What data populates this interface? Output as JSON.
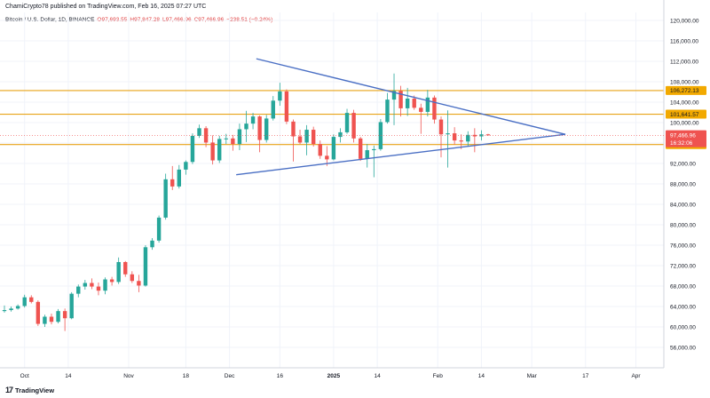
{
  "header": {
    "published": "ChamiCrypto78 published on TradingView.com, Feb 16, 2025 07:27 UTC"
  },
  "legend": {
    "symbol": "Bitcoin / U.S. Dollar, 1D, BINANCE",
    "open": "O97,693.55",
    "high": "H97,847.28",
    "low": "L97,466.96",
    "close": "C97,466.96",
    "change": "−238.51 (−0.24%)"
  },
  "footer": {
    "brand": "TradingView"
  },
  "colors": {
    "up": "#26a69a",
    "down": "#ef5350",
    "level": "#e8a317",
    "trendline": "#4a6fc4",
    "price_tag": "#ef5350",
    "level_tag": "#f2a900"
  },
  "chart_data": {
    "type": "candlestick",
    "title": "",
    "ylim": [
      52000,
      122000
    ],
    "y_ticks": [
      "120,000.00",
      "116,000.00",
      "112,000.00",
      "108,000.00",
      "104,000.00",
      "100,000.00",
      "96,000.00",
      "92,000.00",
      "88,000.00",
      "84,000.00",
      "80,000.00",
      "76,000.00",
      "72,000.00",
      "68,000.00",
      "64,000.00",
      "60,000.00",
      "56,000.00"
    ],
    "x_ticks": [
      {
        "label": "Oct",
        "bold": false
      },
      {
        "label": "14",
        "bold": false
      },
      {
        "label": "Nov",
        "bold": false
      },
      {
        "label": "18",
        "bold": false
      },
      {
        "label": "Dec",
        "bold": false
      },
      {
        "label": "16",
        "bold": false
      },
      {
        "label": "2025",
        "bold": true
      },
      {
        "label": "14",
        "bold": false
      },
      {
        "label": "Feb",
        "bold": false
      },
      {
        "label": "14",
        "bold": false
      },
      {
        "label": "Mar",
        "bold": false
      },
      {
        "label": "17",
        "bold": false
      },
      {
        "label": "Apr",
        "bold": false
      }
    ],
    "levels": [
      {
        "value": 106272.13,
        "label": "106,272.13"
      },
      {
        "value": 101641.57,
        "label": "101,641.57"
      },
      {
        "value": 95702.38,
        "label": "95,702.38"
      }
    ],
    "last_price": {
      "value": 97466.96,
      "label": "97,466.96",
      "countdown": "16:32:06"
    },
    "trendlines": [
      {
        "from": [
          "2024-12-09",
          112500
        ],
        "to": [
          "2025-03-11",
          97700
        ]
      },
      {
        "from": [
          "2024-12-03",
          89800
        ],
        "to": [
          "2025-03-11",
          97700
        ]
      }
    ],
    "candles": [
      [
        "2024-09-25",
        63100,
        64200,
        62800,
        63300
      ],
      [
        "2024-09-27",
        63300,
        64000,
        63000,
        63600
      ],
      [
        "2024-09-29",
        63600,
        64400,
        63400,
        64100
      ],
      [
        "2024-10-01",
        64100,
        66300,
        63800,
        65800
      ],
      [
        "2024-10-03",
        65800,
        66200,
        64600,
        64900
      ],
      [
        "2024-10-05",
        64900,
        65200,
        60200,
        60600
      ],
      [
        "2024-10-07",
        60600,
        62400,
        60000,
        62000
      ],
      [
        "2024-10-09",
        62000,
        62600,
        60500,
        61000
      ],
      [
        "2024-10-11",
        61000,
        63500,
        60700,
        63100
      ],
      [
        "2024-10-13",
        63100,
        63600,
        59200,
        61700
      ],
      [
        "2024-10-15",
        61700,
        66800,
        61500,
        66500
      ],
      [
        "2024-10-17",
        66500,
        68300,
        65800,
        67900
      ],
      [
        "2024-10-19",
        67900,
        69200,
        67300,
        68600
      ],
      [
        "2024-10-21",
        68600,
        69500,
        67400,
        67900
      ],
      [
        "2024-10-23",
        67900,
        68700,
        66200,
        67100
      ],
      [
        "2024-10-25",
        67100,
        69700,
        66400,
        69300
      ],
      [
        "2024-10-27",
        69300,
        69800,
        68100,
        68800
      ],
      [
        "2024-10-29",
        68800,
        73600,
        68400,
        72700
      ],
      [
        "2024-10-31",
        72700,
        72900,
        69800,
        70300
      ],
      [
        "2024-11-02",
        70300,
        70900,
        68600,
        69000
      ],
      [
        "2024-11-04",
        69000,
        70200,
        66800,
        68100
      ],
      [
        "2024-11-06",
        68100,
        76000,
        67900,
        75600
      ],
      [
        "2024-11-08",
        75600,
        77400,
        75100,
        76900
      ],
      [
        "2024-11-10",
        76900,
        81800,
        76500,
        81400
      ],
      [
        "2024-11-12",
        81400,
        90000,
        81000,
        88900
      ],
      [
        "2024-11-14",
        88900,
        91500,
        86800,
        87500
      ],
      [
        "2024-11-16",
        87500,
        91700,
        87100,
        90800
      ],
      [
        "2024-11-18",
        90800,
        92600,
        89800,
        92300
      ],
      [
        "2024-11-20",
        92300,
        97900,
        91900,
        97400
      ],
      [
        "2024-11-22",
        97400,
        99600,
        97000,
        98900
      ],
      [
        "2024-11-24",
        98900,
        99300,
        95200,
        96100
      ],
      [
        "2024-11-26",
        96100,
        97500,
        91800,
        92600
      ],
      [
        "2024-11-28",
        92600,
        97400,
        92100,
        96800
      ],
      [
        "2024-11-30",
        96800,
        97800,
        95800,
        96900
      ],
      [
        "2024-12-02",
        96900,
        97600,
        94500,
        95800
      ],
      [
        "2024-12-04",
        95800,
        99800,
        94600,
        98700
      ],
      [
        "2024-12-06",
        98700,
        102300,
        96200,
        99800
      ],
      [
        "2024-12-08",
        99800,
        101900,
        98700,
        101200
      ],
      [
        "2024-12-10",
        101200,
        101400,
        94200,
        96600
      ],
      [
        "2024-12-12",
        96600,
        101500,
        96100,
        100800
      ],
      [
        "2024-12-14",
        100800,
        105200,
        100400,
        104300
      ],
      [
        "2024-12-16",
        104300,
        107800,
        103300,
        106100
      ],
      [
        "2024-12-18",
        106100,
        106500,
        99700,
        100200
      ],
      [
        "2024-12-20",
        100200,
        100600,
        92400,
        97300
      ],
      [
        "2024-12-22",
        97300,
        98600,
        95800,
        96100
      ],
      [
        "2024-12-24",
        96100,
        99500,
        93600,
        98600
      ],
      [
        "2024-12-26",
        98600,
        99200,
        95300,
        95800
      ],
      [
        "2024-12-28",
        95800,
        96500,
        92900,
        93500
      ],
      [
        "2024-12-30",
        93500,
        95400,
        91500,
        92800
      ],
      [
        "2025-01-01",
        92800,
        97700,
        92600,
        97200
      ],
      [
        "2025-01-03",
        97200,
        98900,
        96100,
        98100
      ],
      [
        "2025-01-05",
        98100,
        102700,
        97800,
        101900
      ],
      [
        "2025-01-07",
        101900,
        102500,
        96100,
        96900
      ],
      [
        "2025-01-09",
        96900,
        97200,
        92500,
        92900
      ],
      [
        "2025-01-11",
        92900,
        95800,
        91200,
        94600
      ],
      [
        "2025-01-13",
        94600,
        95500,
        89300,
        94800
      ],
      [
        "2025-01-15",
        94800,
        100700,
        94500,
        100100
      ],
      [
        "2025-01-17",
        100100,
        105800,
        99800,
        104500
      ],
      [
        "2025-01-19",
        104500,
        109600,
        99500,
        106200
      ],
      [
        "2025-01-21",
        106200,
        107200,
        101200,
        102800
      ],
      [
        "2025-01-23",
        102800,
        106800,
        101300,
        104700
      ],
      [
        "2025-01-25",
        104700,
        105300,
        102500,
        102900
      ],
      [
        "2025-01-27",
        102900,
        103700,
        97800,
        102100
      ],
      [
        "2025-01-29",
        102100,
        106400,
        101200,
        104900
      ],
      [
        "2025-01-31",
        104900,
        105300,
        99800,
        100600
      ],
      [
        "2025-02-02",
        100600,
        101200,
        93200,
        97700
      ],
      [
        "2025-02-04",
        97700,
        102400,
        91200,
        97900
      ],
      [
        "2025-02-06",
        97900,
        99100,
        95700,
        96500
      ],
      [
        "2025-02-08",
        96500,
        97700,
        94800,
        96300
      ],
      [
        "2025-02-10",
        96300,
        98300,
        95300,
        97600
      ],
      [
        "2025-02-12",
        97600,
        98900,
        94200,
        97300
      ],
      [
        "2025-02-14",
        97300,
        98500,
        96500,
        97700
      ],
      [
        "2025-02-16",
        97700,
        97800,
        97500,
        97500
      ]
    ]
  }
}
